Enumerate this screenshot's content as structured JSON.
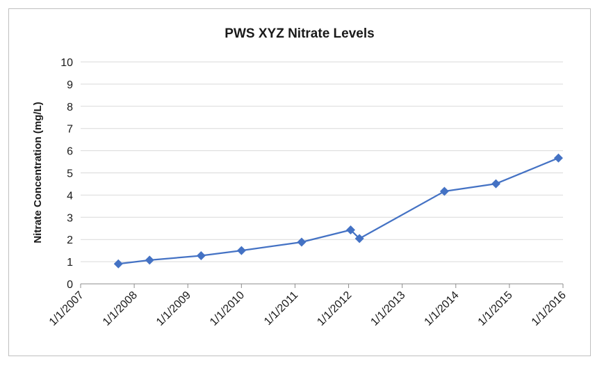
{
  "chart_data": {
    "type": "line",
    "title": "PWS XYZ Nitrate Levels",
    "xlabel": "",
    "ylabel": "Nitrate Concentration (mg/L)",
    "x_tick_labels": [
      "1/1/2007",
      "1/1/2008",
      "1/1/2009",
      "1/1/2010",
      "1/1/2011",
      "1/1/2012",
      "1/1/2013",
      "1/1/2014",
      "1/1/2015",
      "1/1/2016"
    ],
    "xlim": [
      "2007-01-01",
      "2016-01-01"
    ],
    "ylim": [
      0,
      10
    ],
    "y_ticks": [
      0,
      1,
      2,
      3,
      4,
      5,
      6,
      7,
      8,
      9,
      10
    ],
    "grid": "horizontal",
    "legend": "none",
    "marker": "diamond",
    "series_color": "#4472C4",
    "gridline_color": "#d9d9d9",
    "series": [
      {
        "x": [
          "2007-09-15",
          "2008-04-15",
          "2009-04-01",
          "2010-01-01",
          "2011-02-15",
          "2012-01-15",
          "2012-03-15",
          "2013-10-15",
          "2014-10-01",
          "2015-12-01"
        ],
        "y": [
          0.9,
          1.07,
          1.27,
          1.5,
          1.88,
          2.43,
          2.04,
          4.17,
          4.51,
          5.67
        ]
      }
    ]
  }
}
